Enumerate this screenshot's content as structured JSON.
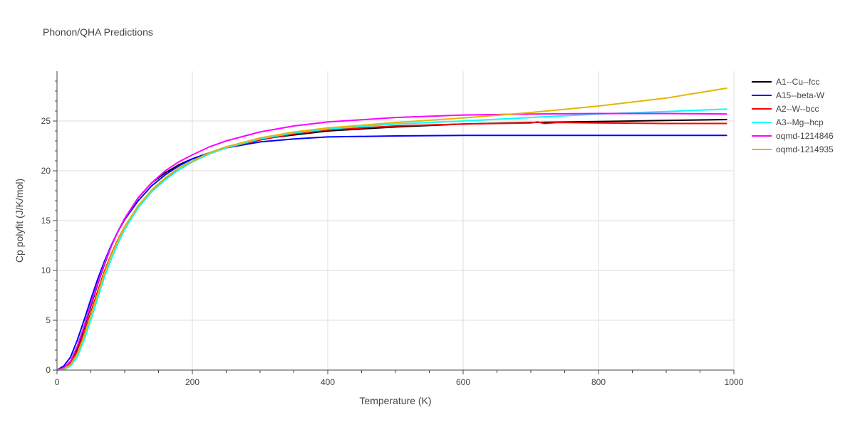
{
  "chart_data": {
    "type": "line",
    "title": "Phonon/QHA Predictions",
    "xlabel": "Temperature (K)",
    "ylabel": "Cp polyfit (J/K/mol)",
    "xlim": [
      0,
      1000
    ],
    "ylim": [
      0,
      30
    ],
    "xticks": [
      0,
      200,
      400,
      600,
      800,
      1000
    ],
    "yticks": [
      0,
      5,
      10,
      15,
      20,
      25
    ],
    "grid": true,
    "legend_position": "top-right",
    "series": [
      {
        "name": "A1--Cu--fcc",
        "color": "#000000",
        "points": [
          [
            0,
            0
          ],
          [
            10,
            0.2
          ],
          [
            20,
            0.8
          ],
          [
            30,
            2.2
          ],
          [
            40,
            4.2
          ],
          [
            50,
            6.4
          ],
          [
            60,
            8.6
          ],
          [
            70,
            10.6
          ],
          [
            80,
            12.4
          ],
          [
            90,
            13.9
          ],
          [
            100,
            15.2
          ],
          [
            120,
            17.3
          ],
          [
            140,
            18.8
          ],
          [
            160,
            19.8
          ],
          [
            180,
            20.6
          ],
          [
            200,
            21.2
          ],
          [
            225,
            21.8
          ],
          [
            250,
            22.4
          ],
          [
            300,
            23.2
          ],
          [
            350,
            23.6
          ],
          [
            400,
            24.0
          ],
          [
            500,
            24.4
          ],
          [
            600,
            24.7
          ],
          [
            700,
            24.85
          ],
          [
            800,
            24.95
          ],
          [
            900,
            25.05
          ],
          [
            990,
            25.15
          ]
        ]
      },
      {
        "name": "A15--beta-W",
        "color": "#0000ff",
        "points": [
          [
            0,
            0
          ],
          [
            10,
            0.4
          ],
          [
            20,
            1.3
          ],
          [
            30,
            3.0
          ],
          [
            40,
            5.0
          ],
          [
            50,
            7.1
          ],
          [
            60,
            9.1
          ],
          [
            70,
            10.9
          ],
          [
            80,
            12.5
          ],
          [
            90,
            13.9
          ],
          [
            100,
            15.1
          ],
          [
            120,
            17.0
          ],
          [
            140,
            18.5
          ],
          [
            160,
            19.6
          ],
          [
            180,
            20.5
          ],
          [
            200,
            21.2
          ],
          [
            225,
            21.8
          ],
          [
            250,
            22.3
          ],
          [
            300,
            22.9
          ],
          [
            350,
            23.2
          ],
          [
            400,
            23.4
          ],
          [
            500,
            23.5
          ],
          [
            600,
            23.55
          ],
          [
            700,
            23.55
          ],
          [
            800,
            23.55
          ],
          [
            900,
            23.55
          ],
          [
            990,
            23.55
          ]
        ]
      },
      {
        "name": "A2--W--bcc",
        "color": "#ff0000",
        "points": [
          [
            0,
            0
          ],
          [
            10,
            0.15
          ],
          [
            20,
            0.7
          ],
          [
            30,
            1.9
          ],
          [
            40,
            3.7
          ],
          [
            50,
            5.8
          ],
          [
            60,
            7.9
          ],
          [
            70,
            9.9
          ],
          [
            80,
            11.6
          ],
          [
            90,
            13.1
          ],
          [
            100,
            14.4
          ],
          [
            120,
            16.5
          ],
          [
            140,
            18.0
          ],
          [
            160,
            19.2
          ],
          [
            180,
            20.1
          ],
          [
            200,
            20.9
          ],
          [
            225,
            21.7
          ],
          [
            250,
            22.3
          ],
          [
            300,
            23.1
          ],
          [
            350,
            23.7
          ],
          [
            400,
            24.1
          ],
          [
            500,
            24.5
          ],
          [
            600,
            24.7
          ],
          [
            700,
            24.8
          ],
          [
            710,
            24.9
          ],
          [
            720,
            24.75
          ],
          [
            740,
            24.85
          ],
          [
            800,
            24.8
          ],
          [
            900,
            24.75
          ],
          [
            990,
            24.75
          ]
        ]
      },
      {
        "name": "A3--Mg--hcp",
        "color": "#00ffff",
        "points": [
          [
            0,
            0
          ],
          [
            10,
            0.05
          ],
          [
            20,
            0.4
          ],
          [
            30,
            1.3
          ],
          [
            40,
            3.0
          ],
          [
            50,
            5.0
          ],
          [
            60,
            7.2
          ],
          [
            70,
            9.3
          ],
          [
            80,
            11.1
          ],
          [
            90,
            12.7
          ],
          [
            100,
            14.1
          ],
          [
            120,
            16.3
          ],
          [
            140,
            17.9
          ],
          [
            160,
            19.1
          ],
          [
            180,
            20.1
          ],
          [
            200,
            20.9
          ],
          [
            225,
            21.7
          ],
          [
            250,
            22.3
          ],
          [
            300,
            23.2
          ],
          [
            350,
            23.8
          ],
          [
            400,
            24.2
          ],
          [
            500,
            24.7
          ],
          [
            600,
            25.0
          ],
          [
            700,
            25.35
          ],
          [
            800,
            25.7
          ],
          [
            900,
            25.95
          ],
          [
            990,
            26.2
          ]
        ]
      },
      {
        "name": "oqmd-1214846",
        "color": "#ff00ff",
        "points": [
          [
            0,
            0
          ],
          [
            10,
            0.2
          ],
          [
            20,
            0.9
          ],
          [
            30,
            2.4
          ],
          [
            40,
            4.4
          ],
          [
            50,
            6.6
          ],
          [
            60,
            8.7
          ],
          [
            70,
            10.7
          ],
          [
            80,
            12.4
          ],
          [
            90,
            13.9
          ],
          [
            100,
            15.2
          ],
          [
            120,
            17.3
          ],
          [
            140,
            18.8
          ],
          [
            160,
            20.0
          ],
          [
            180,
            20.9
          ],
          [
            200,
            21.6
          ],
          [
            225,
            22.4
          ],
          [
            250,
            23.0
          ],
          [
            300,
            23.9
          ],
          [
            350,
            24.5
          ],
          [
            400,
            24.9
          ],
          [
            500,
            25.35
          ],
          [
            600,
            25.6
          ],
          [
            700,
            25.7
          ],
          [
            800,
            25.75
          ],
          [
            900,
            25.75
          ],
          [
            990,
            25.7
          ]
        ]
      },
      {
        "name": "oqmd-1214935",
        "color": "#e6b400",
        "points": [
          [
            0,
            0
          ],
          [
            10,
            0.1
          ],
          [
            20,
            0.55
          ],
          [
            30,
            1.6
          ],
          [
            40,
            3.4
          ],
          [
            50,
            5.5
          ],
          [
            60,
            7.6
          ],
          [
            70,
            9.7
          ],
          [
            80,
            11.5
          ],
          [
            90,
            13.0
          ],
          [
            100,
            14.4
          ],
          [
            120,
            16.5
          ],
          [
            140,
            18.1
          ],
          [
            160,
            19.3
          ],
          [
            180,
            20.3
          ],
          [
            200,
            21.0
          ],
          [
            225,
            21.8
          ],
          [
            250,
            22.4
          ],
          [
            300,
            23.3
          ],
          [
            350,
            23.9
          ],
          [
            400,
            24.3
          ],
          [
            500,
            24.85
          ],
          [
            600,
            25.3
          ],
          [
            700,
            25.85
          ],
          [
            800,
            26.5
          ],
          [
            900,
            27.3
          ],
          [
            990,
            28.3
          ]
        ]
      }
    ]
  }
}
